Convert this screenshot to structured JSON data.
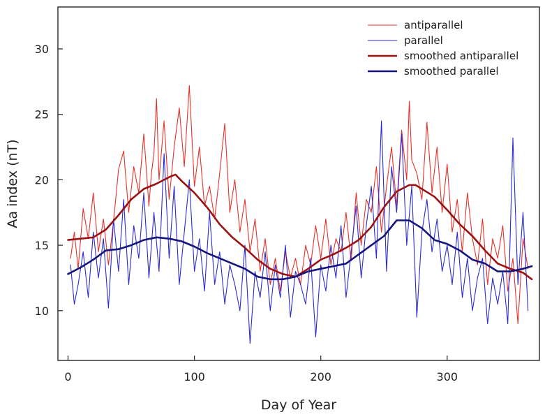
{
  "chart_data": {
    "type": "line",
    "title": "",
    "xlabel": "Day of Year",
    "ylabel": "Aa index (nT)",
    "xlim": [
      -8,
      373
    ],
    "ylim": [
      6.2,
      33.2
    ],
    "xticks": [
      0,
      100,
      200,
      300
    ],
    "yticks": [
      10,
      15,
      20,
      25,
      30
    ],
    "grid": false,
    "legend_position": "top-right",
    "series": [
      {
        "name": "antiparallel",
        "color": "#e8302a",
        "width": 1.1,
        "x": [
          2,
          5,
          8,
          12,
          16,
          20,
          24,
          28,
          32,
          36,
          40,
          44,
          48,
          52,
          56,
          60,
          64,
          66,
          68,
          70,
          72,
          76,
          80,
          84,
          88,
          92,
          96,
          100,
          104,
          108,
          112,
          116,
          120,
          124,
          128,
          132,
          136,
          140,
          144,
          148,
          152,
          156,
          160,
          164,
          168,
          172,
          176,
          180,
          184,
          188,
          192,
          196,
          200,
          204,
          208,
          212,
          216,
          220,
          224,
          228,
          232,
          236,
          240,
          244,
          248,
          252,
          256,
          260,
          264,
          268,
          270,
          272,
          276,
          280,
          284,
          288,
          292,
          296,
          300,
          304,
          308,
          312,
          316,
          320,
          324,
          328,
          332,
          336,
          340,
          344,
          348,
          352,
          356,
          360,
          364
        ],
        "y": [
          14.0,
          16.0,
          13.2,
          17.8,
          15.5,
          19.0,
          14.5,
          17.0,
          13.5,
          16.8,
          20.8,
          22.2,
          17.5,
          21.0,
          19.0,
          23.5,
          18.0,
          20.5,
          22.0,
          26.2,
          20.0,
          24.5,
          18.5,
          22.5,
          25.5,
          21.0,
          27.2,
          19.5,
          22.5,
          18.0,
          19.5,
          17.0,
          20.5,
          24.3,
          17.5,
          20.0,
          16.0,
          18.5,
          14.5,
          17.0,
          13.0,
          15.5,
          12.0,
          14.0,
          11.5,
          14.5,
          12.5,
          14.0,
          12.0,
          15.0,
          13.5,
          16.5,
          14.0,
          17.0,
          13.5,
          15.5,
          14.5,
          17.5,
          13.8,
          19.0,
          15.0,
          18.5,
          17.5,
          21.0,
          16.0,
          19.5,
          22.5,
          18.0,
          23.8,
          20.0,
          26.0,
          21.5,
          20.5,
          18.5,
          24.4,
          19.0,
          22.5,
          17.5,
          21.2,
          16.0,
          18.5,
          14.5,
          19.0,
          15.5,
          13.5,
          17.0,
          12.0,
          15.5,
          14.0,
          16.5,
          11.5,
          14.0,
          9.0,
          15.5,
          13.2
        ]
      },
      {
        "name": "parallel",
        "color": "#2a2ad6",
        "width": 1.1,
        "x": [
          2,
          5,
          8,
          12,
          16,
          20,
          24,
          28,
          32,
          36,
          40,
          44,
          48,
          52,
          56,
          60,
          64,
          68,
          72,
          76,
          80,
          84,
          88,
          92,
          96,
          100,
          104,
          108,
          112,
          116,
          120,
          124,
          128,
          132,
          136,
          140,
          144,
          148,
          152,
          156,
          160,
          164,
          168,
          172,
          176,
          180,
          184,
          188,
          192,
          196,
          200,
          204,
          208,
          212,
          216,
          220,
          224,
          228,
          232,
          236,
          240,
          244,
          248,
          252,
          256,
          260,
          264,
          268,
          272,
          276,
          280,
          284,
          288,
          292,
          296,
          300,
          304,
          308,
          312,
          316,
          320,
          324,
          328,
          332,
          336,
          340,
          344,
          348,
          352,
          356,
          360,
          364
        ],
        "y": [
          13.5,
          10.5,
          12.0,
          14.5,
          11.0,
          16.0,
          12.5,
          15.5,
          10.2,
          17.0,
          13.0,
          18.5,
          12.0,
          16.5,
          14.0,
          19.0,
          12.5,
          17.5,
          13.0,
          22.0,
          14.0,
          19.5,
          12.0,
          16.0,
          20.0,
          13.0,
          15.5,
          11.5,
          17.5,
          12.0,
          14.5,
          10.5,
          13.5,
          12.0,
          10.0,
          15.0,
          7.5,
          13.0,
          11.0,
          14.5,
          10.0,
          13.5,
          11.0,
          15.0,
          9.5,
          13.0,
          12.0,
          10.5,
          14.0,
          8.0,
          13.5,
          11.5,
          15.0,
          12.5,
          16.5,
          11.0,
          14.5,
          18.0,
          12.5,
          16.5,
          19.5,
          14.0,
          24.5,
          13.0,
          21.0,
          17.5,
          23.5,
          15.0,
          19.5,
          9.5,
          16.0,
          18.5,
          14.5,
          17.0,
          13.0,
          15.0,
          12.0,
          16.0,
          11.0,
          14.0,
          10.0,
          12.5,
          14.0,
          9.0,
          12.5,
          10.5,
          13.0,
          9.0,
          23.2,
          12.0,
          17.5,
          10.0
        ]
      },
      {
        "name": "smoothed antiparallel",
        "color": "#9b1212",
        "width": 2.6,
        "x": [
          0,
          10,
          20,
          30,
          40,
          50,
          60,
          70,
          80,
          85,
          90,
          100,
          110,
          120,
          130,
          140,
          150,
          160,
          170,
          180,
          190,
          200,
          210,
          220,
          230,
          240,
          250,
          260,
          270,
          275,
          280,
          290,
          300,
          310,
          320,
          330,
          340,
          350,
          360,
          367
        ],
        "y": [
          15.4,
          15.5,
          15.6,
          16.2,
          17.3,
          18.5,
          19.3,
          19.7,
          20.2,
          20.4,
          19.9,
          19.0,
          17.9,
          16.6,
          15.6,
          14.8,
          13.9,
          13.2,
          12.8,
          12.6,
          13.2,
          13.9,
          14.3,
          14.8,
          15.4,
          16.4,
          17.9,
          19.1,
          19.6,
          19.6,
          19.3,
          18.7,
          17.7,
          16.6,
          15.7,
          14.6,
          13.6,
          13.2,
          12.9,
          12.4
        ]
      },
      {
        "name": "smoothed parallel",
        "color": "#151580",
        "width": 2.6,
        "x": [
          0,
          10,
          20,
          30,
          40,
          50,
          60,
          70,
          80,
          90,
          100,
          110,
          120,
          130,
          140,
          150,
          160,
          170,
          180,
          190,
          200,
          210,
          220,
          230,
          240,
          250,
          260,
          270,
          280,
          290,
          300,
          310,
          320,
          330,
          340,
          350,
          360,
          367
        ],
        "y": [
          12.8,
          13.3,
          13.9,
          14.6,
          14.7,
          15.0,
          15.4,
          15.6,
          15.5,
          15.3,
          14.9,
          14.4,
          14.0,
          13.6,
          13.2,
          12.6,
          12.4,
          12.4,
          12.6,
          13.0,
          13.2,
          13.4,
          13.6,
          14.3,
          15.0,
          15.7,
          16.9,
          16.9,
          16.3,
          15.4,
          15.1,
          14.6,
          13.9,
          13.6,
          13.0,
          13.0,
          13.2,
          13.4
        ]
      }
    ]
  }
}
